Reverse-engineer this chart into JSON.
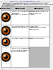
{
  "title": "Page 79   Troubleshooting   5-7",
  "subtitle": "Maintenance Indication",
  "description1": "The table below shows the indicator combinations when user",
  "description2": "intervention is required. It is assumed that the printer is online and is",
  "description3": "processing data.",
  "col_headers": [
    "Indicator",
    "Meaning",
    "Remedy"
  ],
  "rows": [
    {
      "meaning": "There is no paper in the\ncassette,\nMP tray, or Manual Feed.",
      "remedy": "Load paper into the\npaper source."
    },
    {
      "meaning": "The cassette is not\ninserted properly.",
      "remedy": "Insert the\ncassette fully into\nthe printer."
    },
    {
      "meaning": "The top cover is open.",
      "remedy": "Close the cover."
    },
    {
      "meaning": "There is no cassette\nin the paper feeder\nor the cassette...",
      "remedy": "shaded"
    }
  ],
  "bg_color": "#f0f0f0",
  "table_bg": "#ffffff",
  "header_bg": "#c8c8c8",
  "last_remedy_bg": "#b8b8b8",
  "border_color": "#999999",
  "text_color": "#111111",
  "header_text_color": "#000000",
  "title_color": "#4444aa",
  "page_num_color": "#666666",
  "outer_circle_color": "#1a1a1a",
  "orange_color": "#cc5500",
  "inner_dark_color": "#0a0a0a"
}
